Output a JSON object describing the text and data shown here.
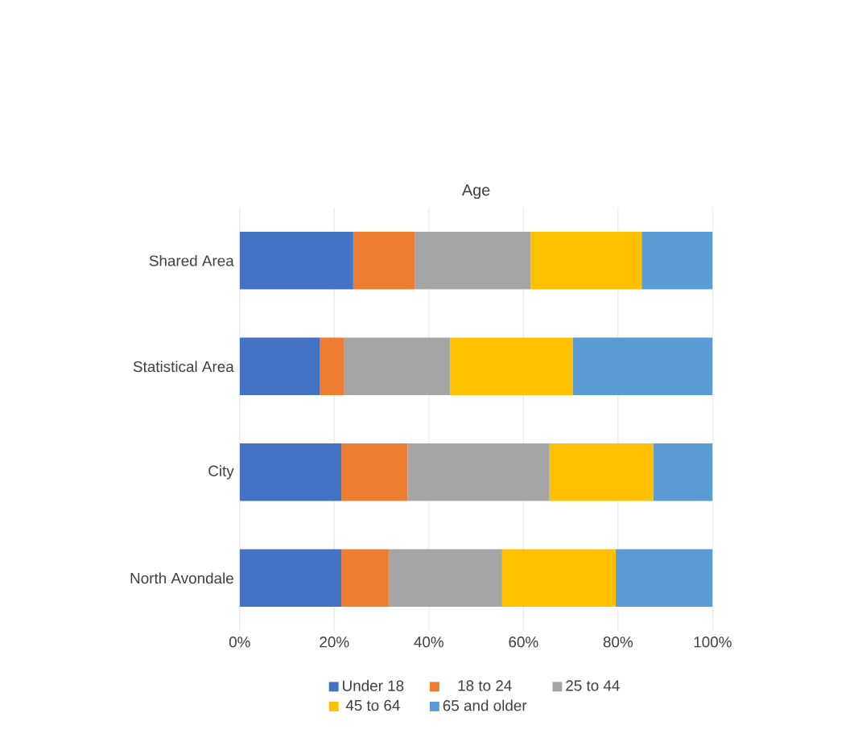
{
  "chart_data": {
    "type": "bar",
    "orientation": "horizontal",
    "stacked": true,
    "title": "Age",
    "categories": [
      "Shared Area",
      "Statistical Area",
      "City",
      "North Avondale"
    ],
    "series": [
      {
        "name": "Under 18",
        "color": "#4472c4",
        "values": [
          24,
          17,
          21.5,
          21.5
        ]
      },
      {
        "name": "18 to 24",
        "color": "#ed7d31",
        "values": [
          13,
          5,
          14,
          10
        ]
      },
      {
        "name": "25 to 44",
        "color": "#a5a5a5",
        "values": [
          24.5,
          22.5,
          30,
          24
        ]
      },
      {
        "name": "45 to 64",
        "color": "#ffc000",
        "values": [
          23.5,
          26,
          22,
          24
        ]
      },
      {
        "name": "65 and older",
        "color": "#5b9bd5",
        "values": [
          15,
          29.5,
          12.5,
          20.5
        ]
      }
    ],
    "xlim": [
      0,
      100
    ],
    "xticks": [
      {
        "value": 0,
        "label": "0%"
      },
      {
        "value": 20,
        "label": "20%"
      },
      {
        "value": 40,
        "label": "40%"
      },
      {
        "value": 60,
        "label": "60%"
      },
      {
        "value": 80,
        "label": "80%"
      },
      {
        "value": 100,
        "label": "100%"
      }
    ],
    "grid": "x",
    "legend": "bottom"
  }
}
